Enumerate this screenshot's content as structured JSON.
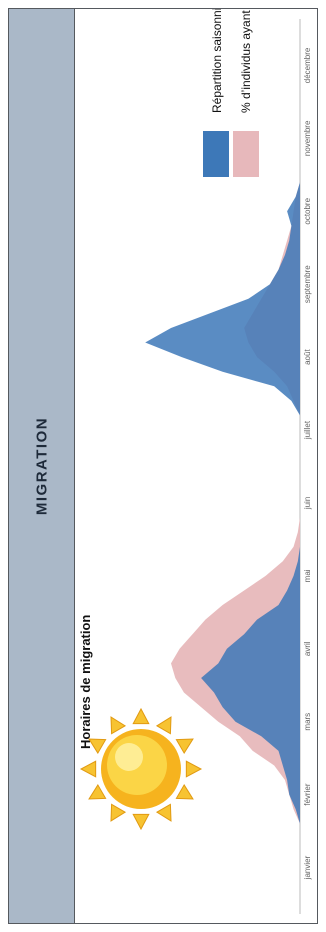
{
  "band_title": "MIGRATION",
  "colors": {
    "band_bg": "#aab8c8",
    "seasonal": "#3d78b8",
    "cumulative": "#e7b8bb",
    "overlap": "#5a4e7a"
  },
  "icon": "sun-icon",
  "chart_data": {
    "type": "area",
    "title": "Horaires de migration",
    "xlabel": "",
    "ylabel": "",
    "legend_position": "top-right",
    "categories": [
      "janvier",
      "février",
      "mars",
      "avril",
      "mai",
      "juin",
      "juillet",
      "août",
      "septembre",
      "octobre",
      "novembre",
      "décembre"
    ],
    "x": [
      1.9,
      2.1,
      2.3,
      2.5,
      2.7,
      2.9,
      3.1,
      3.3,
      3.5,
      3.7,
      3.9,
      4.1,
      4.3,
      4.5,
      4.7,
      4.9,
      5.1,
      5.3,
      5.5,
      5.7,
      5.9,
      6.1,
      6.3,
      6.5,
      6.7,
      6.9,
      7.1,
      7.3,
      7.5,
      7.7,
      7.9,
      8.1,
      8.3,
      8.5,
      8.7,
      8.9,
      9.1,
      9.3,
      9.5,
      9.7,
      9.9,
      10.1,
      10.3,
      10.5,
      10.7,
      10.9
    ],
    "ylim": [
      0,
      100
    ],
    "series": [
      {
        "name": "Répartition saisonnière",
        "values": [
          0,
          0,
          2,
          5,
          6,
          8,
          10,
          18,
          30,
          36,
          40,
          46,
          38,
          34,
          26,
          20,
          10,
          6,
          3,
          1,
          0,
          0,
          0,
          0,
          0,
          0,
          0,
          0,
          0,
          0,
          4,
          12,
          36,
          55,
          72,
          60,
          42,
          24,
          14,
          10,
          7,
          5,
          4,
          6,
          2,
          0
        ]
      },
      {
        "name": "% d’individus ayant migré",
        "values": [
          0,
          0,
          3,
          5,
          7,
          12,
          22,
          28,
          38,
          46,
          54,
          58,
          60,
          56,
          50,
          44,
          36,
          26,
          16,
          8,
          3,
          1,
          0,
          0,
          0,
          0,
          0,
          0,
          0,
          0,
          3,
          6,
          12,
          20,
          24,
          26,
          22,
          18,
          14,
          10,
          8,
          6,
          4,
          3,
          2,
          0
        ]
      }
    ]
  }
}
